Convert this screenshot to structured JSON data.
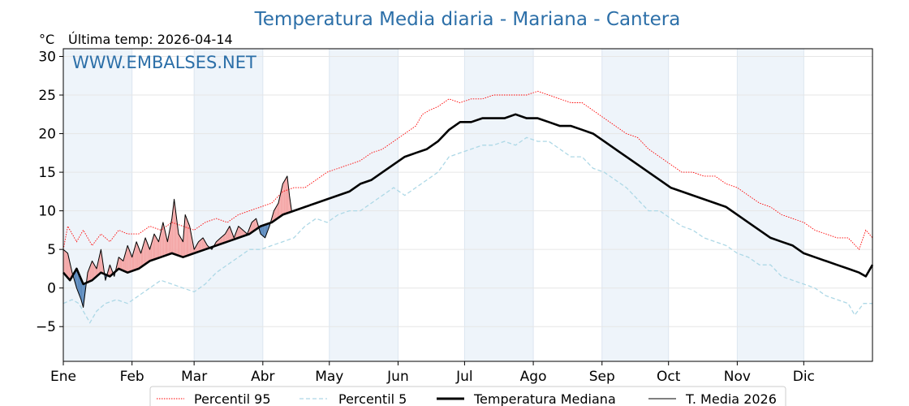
{
  "page": {
    "title": "Temperatura Media diaria - Mariana - Cantera",
    "unit": "°C",
    "last_temp": "Última temp: 2026-04-14",
    "watermark": "WWW.EMBALSES.NET"
  },
  "colors": {
    "p95": "#ff0000",
    "p5": "#add8e6",
    "median": "#000000",
    "current": "#000000",
    "warm_fill": "#f4a7a7",
    "cold_fill": "#5a89bd",
    "band": "#eef4fa",
    "title": "#2c6fa8"
  },
  "chart_data": {
    "type": "line",
    "title": "Temperatura Media diaria - Mariana - Cantera",
    "ylabel": "°C",
    "xlim": [
      1,
      366
    ],
    "ylim": [
      -9.5,
      31
    ],
    "yticks": [
      30,
      25,
      20,
      15,
      10,
      5,
      0,
      -5
    ],
    "ytick_labels": [
      "30",
      "25",
      "20",
      "15",
      "10",
      "5",
      "0",
      "−5"
    ],
    "month_starts": [
      1,
      32,
      60,
      91,
      121,
      152,
      182,
      213,
      244,
      274,
      305,
      335
    ],
    "month_labels": [
      "Ene",
      "Feb",
      "Mar",
      "Abr",
      "May",
      "Jun",
      "Jul",
      "Ago",
      "Sep",
      "Oct",
      "Nov",
      "Dic"
    ],
    "grid": true,
    "legend_position": "bottom",
    "series": [
      {
        "name": "Percentil 95",
        "style": "dotted",
        "points": [
          [
            1,
            5
          ],
          [
            3,
            8
          ],
          [
            7,
            6
          ],
          [
            10,
            7.5
          ],
          [
            14,
            5.5
          ],
          [
            18,
            7
          ],
          [
            22,
            6
          ],
          [
            26,
            7.5
          ],
          [
            30,
            7
          ],
          [
            35,
            7
          ],
          [
            40,
            8
          ],
          [
            45,
            7.5
          ],
          [
            50,
            8.5
          ],
          [
            55,
            8
          ],
          [
            60,
            7.5
          ],
          [
            65,
            8.5
          ],
          [
            70,
            9
          ],
          [
            75,
            8.5
          ],
          [
            80,
            9.5
          ],
          [
            85,
            10
          ],
          [
            90,
            10.5
          ],
          [
            95,
            11
          ],
          [
            100,
            12.5
          ],
          [
            105,
            13
          ],
          [
            110,
            13
          ],
          [
            115,
            14
          ],
          [
            120,
            15
          ],
          [
            125,
            15.5
          ],
          [
            130,
            16
          ],
          [
            135,
            16.5
          ],
          [
            140,
            17.5
          ],
          [
            145,
            18
          ],
          [
            150,
            19
          ],
          [
            155,
            20
          ],
          [
            160,
            21
          ],
          [
            163,
            22.5
          ],
          [
            166,
            23
          ],
          [
            170,
            23.5
          ],
          [
            175,
            24.5
          ],
          [
            180,
            24
          ],
          [
            185,
            24.5
          ],
          [
            190,
            24.5
          ],
          [
            195,
            25
          ],
          [
            200,
            25
          ],
          [
            205,
            25
          ],
          [
            210,
            25
          ],
          [
            215,
            25.5
          ],
          [
            220,
            25
          ],
          [
            225,
            24.5
          ],
          [
            230,
            24
          ],
          [
            235,
            24
          ],
          [
            240,
            23
          ],
          [
            245,
            22
          ],
          [
            250,
            21
          ],
          [
            255,
            20
          ],
          [
            260,
            19.5
          ],
          [
            265,
            18
          ],
          [
            270,
            17
          ],
          [
            275,
            16
          ],
          [
            280,
            15
          ],
          [
            285,
            15
          ],
          [
            290,
            14.5
          ],
          [
            295,
            14.5
          ],
          [
            300,
            13.5
          ],
          [
            305,
            13
          ],
          [
            310,
            12
          ],
          [
            315,
            11
          ],
          [
            320,
            10.5
          ],
          [
            325,
            9.5
          ],
          [
            330,
            9
          ],
          [
            335,
            8.5
          ],
          [
            340,
            7.5
          ],
          [
            345,
            7
          ],
          [
            350,
            6.5
          ],
          [
            355,
            6.5
          ],
          [
            360,
            5
          ],
          [
            363,
            7.5
          ],
          [
            366,
            6.5
          ]
        ]
      },
      {
        "name": "Percentil 5",
        "style": "dashed",
        "points": [
          [
            1,
            -2
          ],
          [
            5,
            -1.5
          ],
          [
            8,
            -2
          ],
          [
            10,
            -3
          ],
          [
            13,
            -4.5
          ],
          [
            16,
            -3
          ],
          [
            20,
            -2
          ],
          [
            25,
            -1.5
          ],
          [
            30,
            -2
          ],
          [
            35,
            -1
          ],
          [
            40,
            0
          ],
          [
            45,
            1
          ],
          [
            50,
            0.5
          ],
          [
            55,
            0
          ],
          [
            60,
            -0.5
          ],
          [
            65,
            0.5
          ],
          [
            70,
            2
          ],
          [
            75,
            3
          ],
          [
            80,
            4
          ],
          [
            85,
            5
          ],
          [
            90,
            5
          ],
          [
            95,
            5.5
          ],
          [
            100,
            6
          ],
          [
            105,
            6.5
          ],
          [
            110,
            8
          ],
          [
            115,
            9
          ],
          [
            120,
            8.5
          ],
          [
            125,
            9.5
          ],
          [
            130,
            10
          ],
          [
            135,
            10
          ],
          [
            140,
            11
          ],
          [
            145,
            12
          ],
          [
            150,
            13
          ],
          [
            155,
            12
          ],
          [
            160,
            13
          ],
          [
            165,
            14
          ],
          [
            170,
            15
          ],
          [
            175,
            17
          ],
          [
            180,
            17.5
          ],
          [
            185,
            18
          ],
          [
            190,
            18.5
          ],
          [
            195,
            18.5
          ],
          [
            200,
            19
          ],
          [
            205,
            18.5
          ],
          [
            210,
            19.5
          ],
          [
            215,
            19
          ],
          [
            220,
            19
          ],
          [
            225,
            18
          ],
          [
            230,
            17
          ],
          [
            235,
            17
          ],
          [
            240,
            15.5
          ],
          [
            245,
            15
          ],
          [
            250,
            14
          ],
          [
            255,
            13
          ],
          [
            260,
            11.5
          ],
          [
            265,
            10
          ],
          [
            270,
            10
          ],
          [
            275,
            9
          ],
          [
            280,
            8
          ],
          [
            285,
            7.5
          ],
          [
            290,
            6.5
          ],
          [
            295,
            6
          ],
          [
            300,
            5.5
          ],
          [
            305,
            4.5
          ],
          [
            310,
            4
          ],
          [
            315,
            3
          ],
          [
            320,
            3
          ],
          [
            325,
            1.5
          ],
          [
            330,
            1
          ],
          [
            335,
            0.5
          ],
          [
            340,
            0
          ],
          [
            345,
            -1
          ],
          [
            350,
            -1.5
          ],
          [
            355,
            -2
          ],
          [
            358,
            -3.5
          ],
          [
            362,
            -2
          ],
          [
            366,
            -2
          ]
        ]
      },
      {
        "name": "Temperatura Mediana",
        "style": "solid-bold",
        "points": [
          [
            1,
            2
          ],
          [
            4,
            1
          ],
          [
            7,
            2.5
          ],
          [
            10,
            0.5
          ],
          [
            14,
            1
          ],
          [
            18,
            2
          ],
          [
            22,
            1.5
          ],
          [
            26,
            2.5
          ],
          [
            30,
            2
          ],
          [
            35,
            2.5
          ],
          [
            40,
            3.5
          ],
          [
            45,
            4
          ],
          [
            50,
            4.5
          ],
          [
            55,
            4
          ],
          [
            60,
            4.5
          ],
          [
            65,
            5
          ],
          [
            70,
            5.5
          ],
          [
            75,
            6
          ],
          [
            80,
            6.5
          ],
          [
            85,
            7
          ],
          [
            90,
            8
          ],
          [
            95,
            8.5
          ],
          [
            100,
            9.5
          ],
          [
            105,
            10
          ],
          [
            110,
            10.5
          ],
          [
            115,
            11
          ],
          [
            120,
            11.5
          ],
          [
            125,
            12
          ],
          [
            130,
            12.5
          ],
          [
            135,
            13.5
          ],
          [
            140,
            14
          ],
          [
            145,
            15
          ],
          [
            150,
            16
          ],
          [
            155,
            17
          ],
          [
            160,
            17.5
          ],
          [
            165,
            18
          ],
          [
            170,
            19
          ],
          [
            175,
            20.5
          ],
          [
            180,
            21.5
          ],
          [
            185,
            21.5
          ],
          [
            190,
            22
          ],
          [
            195,
            22
          ],
          [
            200,
            22
          ],
          [
            205,
            22.5
          ],
          [
            210,
            22
          ],
          [
            215,
            22
          ],
          [
            220,
            21.5
          ],
          [
            225,
            21
          ],
          [
            230,
            21
          ],
          [
            235,
            20.5
          ],
          [
            240,
            20
          ],
          [
            245,
            19
          ],
          [
            250,
            18
          ],
          [
            255,
            17
          ],
          [
            260,
            16
          ],
          [
            265,
            15
          ],
          [
            270,
            14
          ],
          [
            275,
            13
          ],
          [
            280,
            12.5
          ],
          [
            285,
            12
          ],
          [
            290,
            11.5
          ],
          [
            295,
            11
          ],
          [
            300,
            10.5
          ],
          [
            305,
            9.5
          ],
          [
            310,
            8.5
          ],
          [
            315,
            7.5
          ],
          [
            320,
            6.5
          ],
          [
            325,
            6
          ],
          [
            330,
            5.5
          ],
          [
            335,
            4.5
          ],
          [
            340,
            4
          ],
          [
            345,
            3.5
          ],
          [
            350,
            3
          ],
          [
            355,
            2.5
          ],
          [
            360,
            2
          ],
          [
            363,
            1.5
          ],
          [
            366,
            3
          ]
        ]
      },
      {
        "name": "T. Media 2026",
        "style": "solid-thin",
        "points": [
          [
            1,
            5
          ],
          [
            3,
            4.5
          ],
          [
            5,
            2
          ],
          [
            7,
            0
          ],
          [
            9,
            -1.5
          ],
          [
            10,
            -2.5
          ],
          [
            12,
            2
          ],
          [
            14,
            3.5
          ],
          [
            16,
            2.5
          ],
          [
            18,
            5
          ],
          [
            20,
            1
          ],
          [
            22,
            3
          ],
          [
            24,
            1.5
          ],
          [
            26,
            4
          ],
          [
            28,
            3.5
          ],
          [
            30,
            5.5
          ],
          [
            32,
            4
          ],
          [
            34,
            6
          ],
          [
            36,
            4.5
          ],
          [
            38,
            6.5
          ],
          [
            40,
            5
          ],
          [
            42,
            7
          ],
          [
            44,
            6
          ],
          [
            46,
            8.5
          ],
          [
            48,
            6
          ],
          [
            50,
            9
          ],
          [
            51,
            11.5
          ],
          [
            53,
            7
          ],
          [
            55,
            6
          ],
          [
            56,
            9.5
          ],
          [
            58,
            8
          ],
          [
            60,
            5
          ],
          [
            62,
            6
          ],
          [
            64,
            6.5
          ],
          [
            66,
            5.5
          ],
          [
            68,
            5
          ],
          [
            70,
            6
          ],
          [
            72,
            6.5
          ],
          [
            74,
            7
          ],
          [
            76,
            8
          ],
          [
            78,
            6.5
          ],
          [
            80,
            8
          ],
          [
            82,
            7.5
          ],
          [
            84,
            7
          ],
          [
            86,
            8.5
          ],
          [
            88,
            9
          ],
          [
            90,
            7
          ],
          [
            92,
            6.5
          ],
          [
            94,
            8
          ],
          [
            96,
            10
          ],
          [
            98,
            11
          ],
          [
            100,
            13.5
          ],
          [
            102,
            14.5
          ],
          [
            103,
            12
          ],
          [
            104,
            10
          ]
        ]
      }
    ]
  },
  "legend": [
    {
      "label": "Percentil 95",
      "style": "p95"
    },
    {
      "label": "Percentil 5",
      "style": "p5"
    },
    {
      "label": "Temperatura Mediana",
      "style": "median"
    },
    {
      "label": "T. Media 2026",
      "style": "current"
    }
  ]
}
